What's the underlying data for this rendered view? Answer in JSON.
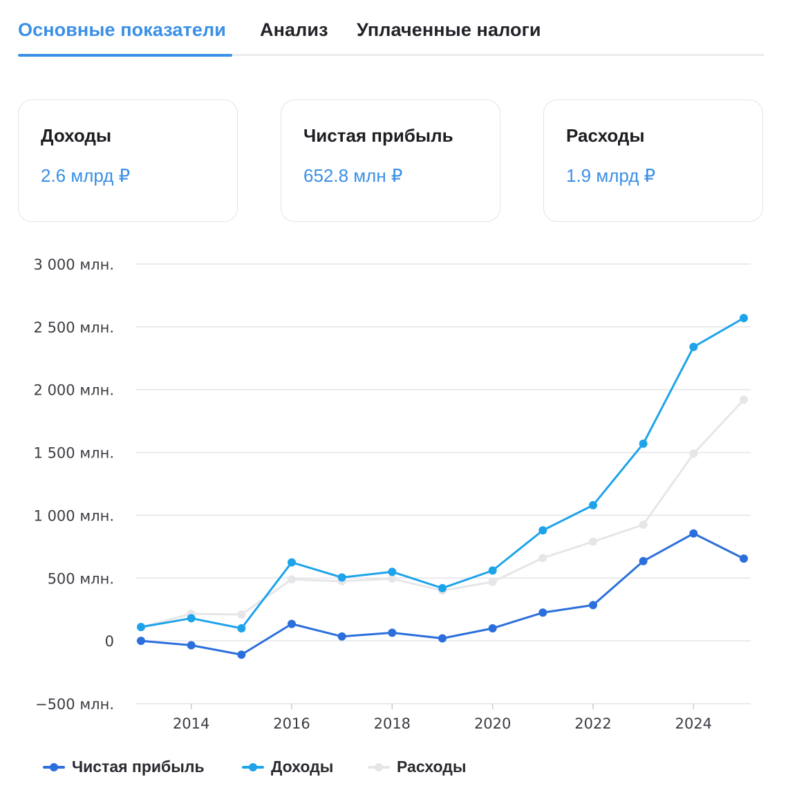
{
  "tabs": [
    {
      "label": "Основные показатели",
      "active": true
    },
    {
      "label": "Анализ",
      "active": false
    },
    {
      "label": "Уплаченные налоги",
      "active": false
    }
  ],
  "cards": [
    {
      "title": "Доходы",
      "value": "2.6 млрд ₽"
    },
    {
      "title": "Чистая прибыль",
      "value": "652.8 млн ₽"
    },
    {
      "title": "Расходы",
      "value": "1.9 млрд ₽"
    }
  ],
  "colors": {
    "accent": "#3a8fe6",
    "net_profit": "#2b6fdc",
    "revenue": "#1ea3ea",
    "expenses": "#e6e6e9",
    "grid": "#e4e4e8"
  },
  "chart_data": {
    "type": "line",
    "x": [
      2013,
      2014,
      2015,
      2016,
      2017,
      2018,
      2019,
      2020,
      2021,
      2022,
      2023,
      2024,
      2025
    ],
    "x_ticks": [
      "2014",
      "2016",
      "2018",
      "2020",
      "2022",
      "2024"
    ],
    "y_ticks": [
      "3 000 млн.",
      "2 500 млн.",
      "2 000 млн.",
      "1 500 млн.",
      "1 000 млн.",
      "500 млн.",
      "0",
      "−500 млн."
    ],
    "ylim": [
      -500,
      3000
    ],
    "y_unit": "млн.",
    "grid": true,
    "legend_position": "bottom",
    "series": [
      {
        "name": "Чистая прибыль",
        "color": "#2b6fdc",
        "values": [
          0,
          -35,
          -110,
          135,
          35,
          65,
          20,
          100,
          225,
          285,
          635,
          855,
          655
        ]
      },
      {
        "name": "Доходы",
        "color": "#1ea3ea",
        "values": [
          110,
          180,
          100,
          625,
          505,
          550,
          420,
          560,
          880,
          1080,
          1570,
          2340,
          2570
        ]
      },
      {
        "name": "Расходы",
        "color": "#e6e6e9",
        "values": [
          110,
          215,
          210,
          490,
          475,
          495,
          400,
          470,
          660,
          790,
          925,
          1490,
          1920
        ]
      }
    ]
  }
}
